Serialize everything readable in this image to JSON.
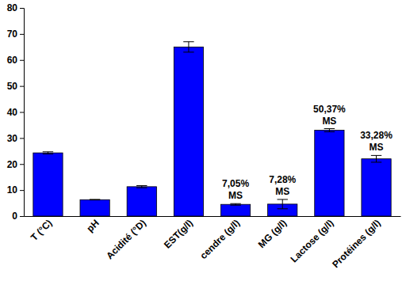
{
  "chart_data": {
    "type": "bar",
    "categories": [
      "T (°C)",
      "pH",
      "Acidité (°D)",
      "EST(g/l)",
      "cendre (g/l)",
      "MG (g/l)",
      "Lactose (g/l)",
      "Protéines (g/l)"
    ],
    "values": [
      24.3,
      6.3,
      11.3,
      65,
      4.5,
      4.6,
      33,
      22
    ],
    "errors": [
      0.4,
      0.1,
      0.4,
      2,
      0.3,
      1.8,
      0.6,
      1.3
    ],
    "annotations": [
      null,
      null,
      null,
      null,
      [
        "7,05%",
        "MS"
      ],
      [
        "7,28%",
        "MS"
      ],
      [
        "50,37%",
        "MS"
      ],
      [
        "33,28%",
        "MS"
      ]
    ],
    "color": "#0000ff",
    "ylim": [
      0,
      80
    ],
    "yticks": [
      0,
      10,
      20,
      30,
      40,
      50,
      60,
      70,
      80
    ],
    "grid": false
  }
}
